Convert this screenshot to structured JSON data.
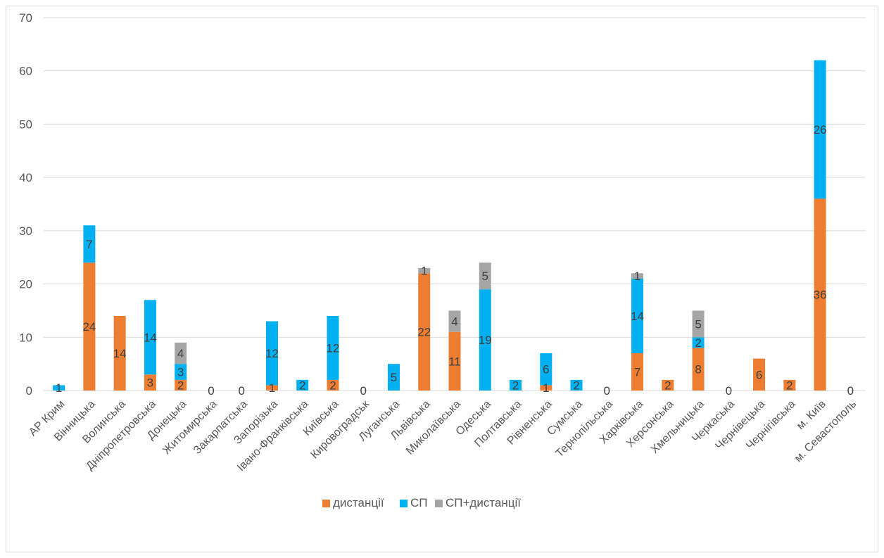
{
  "chart_data": {
    "type": "bar",
    "stacked": true,
    "categories": [
      "АР Крим",
      "Вінницька",
      "Волинська",
      "Дніпропетровська",
      "Донецька",
      "Житомирська",
      "Закарпатська",
      "Запорізька",
      "Івано-Франківська",
      "Київська",
      "Кировоградськ",
      "Луганська",
      "Львівська",
      "Миколаївська",
      "Одеська",
      "Полтавська",
      "Рівненська",
      "Сумська",
      "Тернопільська",
      "Харківська",
      "Херсонська",
      "Хмельницька",
      "Черкаська",
      "Чернівецька",
      "Чернігівська",
      "м. Київ",
      "м. Севастополь"
    ],
    "series": [
      {
        "name": "дистанції",
        "color": "#ed7d31",
        "values": [
          0,
          24,
          14,
          3,
          2,
          0,
          0,
          1,
          0,
          2,
          0,
          0,
          22,
          11,
          0,
          0,
          1,
          0,
          0,
          7,
          2,
          8,
          0,
          6,
          2,
          36,
          0
        ]
      },
      {
        "name": "СП",
        "color": "#00b0f0",
        "values": [
          1,
          7,
          0,
          14,
          3,
          0,
          0,
          12,
          2,
          12,
          0,
          5,
          0,
          0,
          19,
          2,
          6,
          2,
          0,
          14,
          0,
          2,
          0,
          0,
          0,
          26,
          0
        ]
      },
      {
        "name": "СП+дистанції",
        "color": "#a5a5a5",
        "values": [
          0,
          0,
          0,
          0,
          4,
          0,
          0,
          0,
          0,
          0,
          0,
          0,
          1,
          4,
          5,
          0,
          0,
          0,
          0,
          1,
          0,
          5,
          0,
          0,
          0,
          0,
          0
        ]
      }
    ],
    "data_labels": [
      [
        null,
        "24",
        "14",
        "3",
        "2",
        null,
        null,
        "1",
        null,
        "2",
        null,
        null,
        "22",
        "11",
        null,
        null,
        "1",
        null,
        null,
        "7",
        "2",
        "8",
        null,
        "6",
        "2",
        "36",
        null
      ],
      [
        "1",
        "7",
        null,
        "14",
        "3",
        null,
        null,
        "12",
        "2",
        "12",
        null,
        "5",
        null,
        null,
        "19",
        "2",
        "6",
        "2",
        null,
        "14",
        null,
        "2",
        null,
        null,
        null,
        "26",
        null
      ],
      [
        null,
        null,
        null,
        null,
        "4",
        null,
        null,
        null,
        null,
        null,
        null,
        null,
        "1",
        "4",
        "5",
        null,
        null,
        null,
        null,
        "1",
        null,
        "5",
        null,
        null,
        null,
        null,
        null
      ]
    ],
    "zero_labels": [
      false,
      false,
      false,
      false,
      false,
      true,
      true,
      false,
      false,
      false,
      true,
      false,
      false,
      false,
      false,
      false,
      false,
      false,
      true,
      false,
      false,
      false,
      true,
      false,
      false,
      false,
      true
    ],
    "ylim": [
      0,
      70
    ],
    "yticks": [
      "0",
      "10",
      "20",
      "30",
      "40",
      "50",
      "60",
      "70"
    ],
    "grid": true,
    "legend_position": "bottom",
    "title": "",
    "xlabel": "",
    "ylabel": ""
  }
}
